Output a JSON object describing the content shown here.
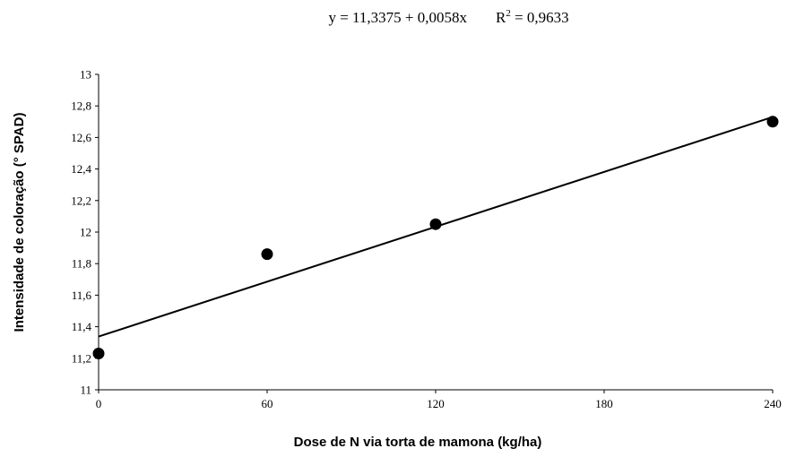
{
  "chart_data": {
    "type": "scatter",
    "title": "",
    "equation": "y = 11,3375 + 0,0058x",
    "r_squared_prefix": "R",
    "r_squared_exp": "2",
    "r_squared_suffix": " = 0,9633",
    "xlabel": "Dose de N via torta de mamona (kg/ha)",
    "ylabel": "Intensidade de coloração (° SPAD)",
    "xlim": [
      0,
      240
    ],
    "ylim": [
      11,
      13
    ],
    "x_ticks": [
      0,
      60,
      120,
      180,
      240
    ],
    "x_tick_labels": [
      "0",
      "60",
      "120",
      "180",
      "240"
    ],
    "y_ticks": [
      11,
      11.2,
      11.4,
      11.6,
      11.8,
      12,
      12.2,
      12.4,
      12.6,
      12.8,
      13
    ],
    "y_tick_labels": [
      "11",
      "11,2",
      "11,4",
      "11,6",
      "11,8",
      "12",
      "12,2",
      "12,4",
      "12,6",
      "12,8",
      "13"
    ],
    "grid": false,
    "legend": "none",
    "series": [
      {
        "x": [
          0,
          60,
          120,
          240
        ],
        "y": [
          11.23,
          11.86,
          12.05,
          12.7
        ],
        "color": "#000000",
        "marker": "circle"
      }
    ],
    "trendline": {
      "intercept": 11.3375,
      "slope": 0.0058,
      "x_range": [
        0,
        240
      ],
      "color": "#000000"
    }
  }
}
